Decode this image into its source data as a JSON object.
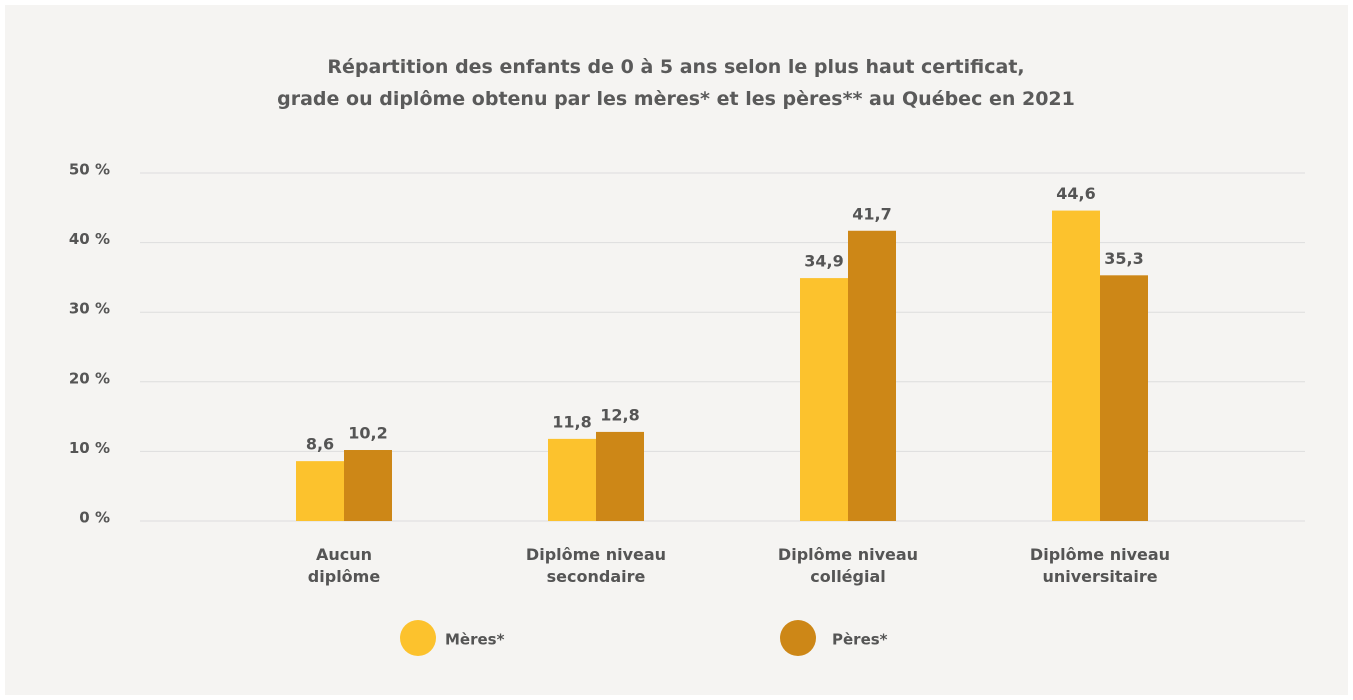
{
  "chart_data": {
    "type": "bar",
    "title": "Répartition des enfants de 0 à 5 ans selon le plus haut certificat,\ngrade ou diplôme obtenu par les mères* et les pères** au Québec en 2021",
    "categories": [
      "Aucun\ndiplôme",
      "Diplôme niveau\nsecondaire",
      "Diplôme niveau\ncollégial",
      "Diplôme niveau\nuniversitaire"
    ],
    "series": [
      {
        "name": "Mères*",
        "color": "#fcc22d",
        "values": [
          8.6,
          11.8,
          34.9,
          44.6
        ],
        "value_labels": [
          "8,6",
          "11,8",
          "34,9",
          "44,6"
        ]
      },
      {
        "name": "Pères*",
        "color": "#cd8717",
        "values": [
          10.2,
          12.8,
          41.7,
          35.3
        ],
        "value_labels": [
          "10,2",
          "12,8",
          "41,7",
          "35,3"
        ]
      }
    ],
    "ylim": [
      0,
      50
    ],
    "yticks": [
      {
        "value": 0,
        "label": "0 %"
      },
      {
        "value": 10,
        "label": "10 %"
      },
      {
        "value": 20,
        "label": "20 %"
      },
      {
        "value": 30,
        "label": "30 %"
      },
      {
        "value": 40,
        "label": "40 %"
      },
      {
        "value": 50,
        "label": "50 %"
      }
    ],
    "grid": true
  }
}
